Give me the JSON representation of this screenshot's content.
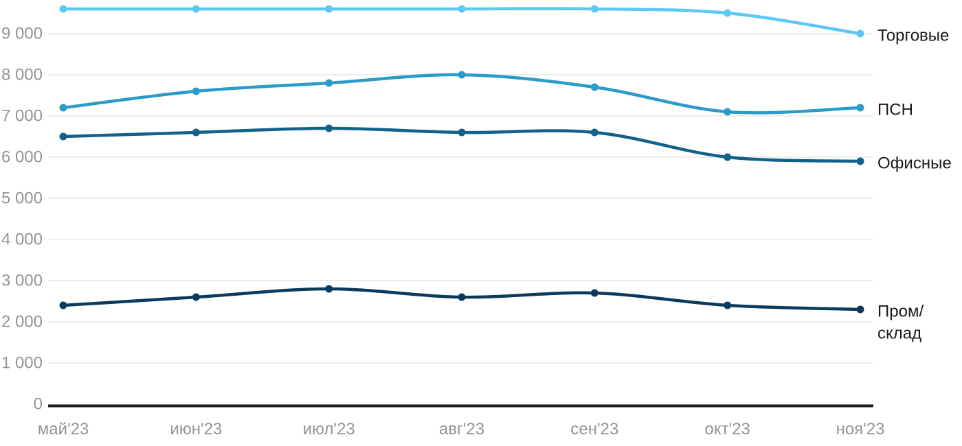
{
  "chart_data": {
    "type": "line",
    "title": "",
    "xlabel": "",
    "ylabel": "",
    "x": [
      "май'23",
      "июн'23",
      "июл'23",
      "авг'23",
      "сен'23",
      "окт'23",
      "ноя'23"
    ],
    "series": [
      {
        "name": "Торговые",
        "color": "#5cc8f4",
        "values": [
          9600,
          9600,
          9600,
          9600,
          9600,
          9500,
          9000
        ]
      },
      {
        "name": "ПСН",
        "color": "#2b9bc9",
        "values": [
          7200,
          7600,
          7800,
          8000,
          7700,
          7100,
          7200
        ]
      },
      {
        "name": "Офисные",
        "color": "#12618b",
        "values": [
          6500,
          6600,
          6700,
          6600,
          6600,
          6000,
          5900
        ]
      },
      {
        "name": "Пром/склад",
        "color": "#0c3a5c",
        "values": [
          2400,
          2600,
          2800,
          2600,
          2700,
          2400,
          2300
        ]
      }
    ],
    "ylim": [
      0,
      9700
    ],
    "yticks": [
      0,
      1000,
      2000,
      3000,
      4000,
      5000,
      6000,
      7000,
      8000,
      9000
    ],
    "ytick_labels": [
      "0",
      "1 000",
      "2 000",
      "3 000",
      "4 000",
      "5 000",
      "6 000",
      "7 000",
      "8 000",
      "9 000"
    ],
    "grid": true,
    "legend_position": "right-of-last-point",
    "colors": {
      "grid_line": "#e7e7e7",
      "axis_line": "#1a1a1a",
      "tick_label": "#949494",
      "legend_text": "#1a1a1a",
      "background": "#ffffff"
    }
  }
}
